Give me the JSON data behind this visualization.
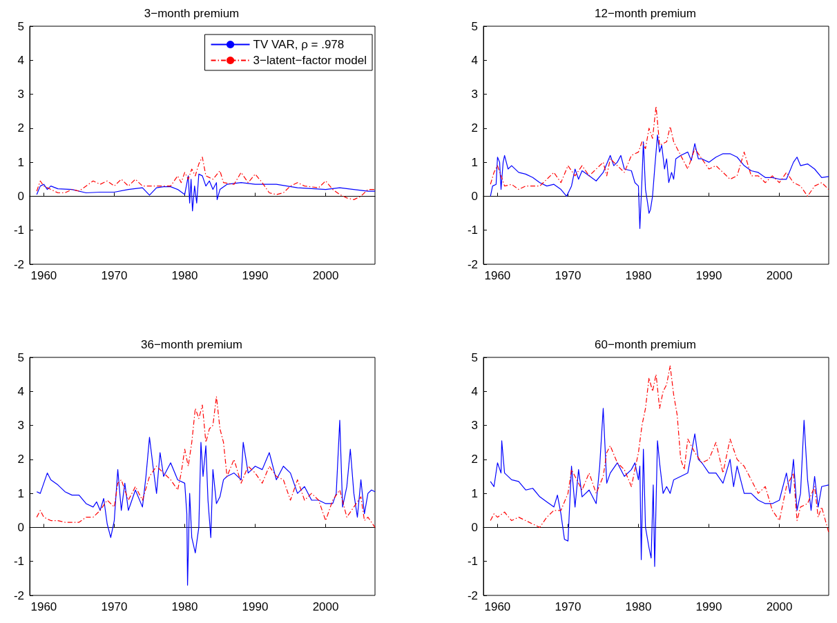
{
  "chart_data": [
    {
      "type": "line",
      "title": "3−month premium",
      "xlim": [
        1958,
        2007
      ],
      "xticks": [
        1960,
        1970,
        1980,
        1990,
        2000
      ],
      "ylim": [
        -2,
        5
      ],
      "yticks": [
        -2,
        -1,
        0,
        1,
        2,
        3,
        4,
        5
      ],
      "legend": "top right",
      "series": [
        {
          "name": "TV VAR, ρ = .978",
          "color": "#0000ff",
          "line_style": "solid",
          "x": [
            1959,
            1959.5,
            1960,
            1960.5,
            1961,
            1962,
            1964,
            1966,
            1968,
            1970,
            1972,
            1974,
            1975,
            1976,
            1977,
            1978,
            1979,
            1980,
            1980.5,
            1980.7,
            1980.9,
            1981.1,
            1981.4,
            1981.7,
            1982,
            1982.5,
            1983,
            1983.5,
            1984,
            1984.5,
            1984.6,
            1985,
            1986,
            1988,
            1990,
            1993,
            1996,
            2000,
            2002,
            2006,
            2007
          ],
          "values": [
            0.05,
            0.3,
            0.35,
            0.2,
            0.3,
            0.22,
            0.2,
            0.1,
            0.12,
            0.12,
            0.2,
            0.25,
            0.03,
            0.25,
            0.28,
            0.28,
            0.2,
            0.05,
            0.6,
            -0.2,
            0.5,
            -0.43,
            0.3,
            -0.2,
            0.65,
            0.6,
            0.3,
            0.45,
            0.2,
            0.4,
            -0.1,
            0.2,
            0.35,
            0.4,
            0.35,
            0.35,
            0.25,
            0.2,
            0.25,
            0.15,
            0.15
          ]
        },
        {
          "name": "3−latent−factor model",
          "color": "#ff0000",
          "line_style": "dashed",
          "x": [
            1959,
            1959.5,
            1960,
            1961,
            1962,
            1963,
            1964,
            1965,
            1966,
            1967,
            1968,
            1969,
            1970,
            1971,
            1972,
            1973,
            1974,
            1975,
            1976,
            1978,
            1979,
            1979.5,
            1980,
            1980.5,
            1981,
            1981.5,
            1982,
            1982.5,
            1983,
            1984,
            1985,
            1985.5,
            1987,
            1988,
            1989,
            1990,
            1991,
            1992,
            1993,
            1994,
            1995,
            1996,
            1997,
            1999,
            2000,
            2001,
            2002,
            2003,
            2004,
            2005,
            2006,
            2007
          ],
          "values": [
            0.15,
            0.45,
            0.3,
            0.2,
            0.1,
            0.1,
            0.2,
            0.15,
            0.3,
            0.45,
            0.35,
            0.45,
            0.3,
            0.5,
            0.3,
            0.5,
            0.3,
            0.3,
            0.3,
            0.3,
            0.6,
            0.4,
            0.7,
            0.5,
            0.8,
            0.6,
            0.95,
            1.15,
            0.6,
            0.5,
            0.75,
            0.4,
            0.35,
            0.7,
            0.4,
            0.65,
            0.4,
            0.1,
            0.05,
            0.1,
            0.3,
            0.4,
            0.3,
            0.25,
            0.45,
            0.2,
            0.05,
            -0.05,
            -0.1,
            0,
            0.2,
            0.2
          ]
        }
      ]
    },
    {
      "type": "line",
      "title": "12−month premium",
      "xlim": [
        1958,
        2007
      ],
      "xticks": [
        1960,
        1970,
        1980,
        1990,
        2000
      ],
      "ylim": [
        -2,
        5
      ],
      "yticks": [
        -2,
        -1,
        0,
        1,
        2,
        3,
        4,
        5
      ],
      "series": [
        {
          "color": "#0000ff",
          "line_style": "solid",
          "x": [
            1959,
            1959.3,
            1959.8,
            1960,
            1960.3,
            1960.5,
            1960.8,
            1961,
            1961.5,
            1962,
            1963,
            1964,
            1965,
            1966,
            1967,
            1968,
            1969,
            1969.8,
            1970.5,
            1971,
            1971.5,
            1972,
            1973,
            1974,
            1975,
            1976,
            1976.5,
            1977,
            1977.5,
            1978,
            1979,
            1979.5,
            1980,
            1980.2,
            1980.5,
            1980.7,
            1981,
            1981.3,
            1981.5,
            1981.7,
            1982,
            1982.3,
            1982.7,
            1983,
            1983.3,
            1983.7,
            1984,
            1984.3,
            1984.7,
            1985,
            1985.3,
            1986,
            1987,
            1987.5,
            1988,
            1988.5,
            1989,
            1990,
            1991,
            1992,
            1993,
            1994,
            1995,
            1996,
            1997,
            1998,
            1999,
            2000,
            2001,
            2002,
            2002.5,
            2003,
            2004,
            2005,
            2006,
            2007
          ],
          "values": [
            0,
            0.3,
            0.35,
            1.15,
            1,
            0.2,
            1,
            1.2,
            0.8,
            0.9,
            0.7,
            0.65,
            0.55,
            0.4,
            0.3,
            0.35,
            0.2,
            0,
            0.3,
            0.8,
            0.5,
            0.75,
            0.6,
            0.45,
            0.7,
            1.2,
            0.9,
            1,
            1.2,
            0.8,
            0.75,
            0.4,
            0.3,
            -0.95,
            0.5,
            1.6,
            0.2,
            -0.2,
            -0.5,
            -0.4,
            0,
            0.8,
            1.8,
            1.3,
            1.5,
            0.8,
            1.1,
            0.4,
            0.7,
            0.5,
            1.1,
            1.2,
            1.3,
            1.05,
            1.55,
            1.1,
            1.1,
            1,
            1.15,
            1.25,
            1.25,
            1.15,
            0.9,
            0.75,
            0.7,
            0.55,
            0.55,
            0.5,
            0.5,
            1,
            1.15,
            0.9,
            0.95,
            0.8,
            0.55,
            0.58
          ]
        },
        {
          "color": "#ff0000",
          "line_style": "dashed",
          "x": [
            1959,
            1959.5,
            1960,
            1960.5,
            1961,
            1962,
            1963,
            1964,
            1965,
            1966,
            1967,
            1968,
            1969,
            1970,
            1971,
            1972,
            1973,
            1974,
            1975,
            1975.5,
            1976,
            1977,
            1978,
            1979,
            1980,
            1980.5,
            1981,
            1981.5,
            1982,
            1982.5,
            1983,
            1984,
            1984.5,
            1985,
            1986,
            1987,
            1988,
            1989,
            1990,
            1991,
            1992,
            1993,
            1994,
            1995,
            1996,
            1997,
            1998,
            1999,
            2000,
            2001,
            2002,
            2003,
            2004,
            2005,
            2006,
            2007
          ],
          "values": [
            0.35,
            0.7,
            0.9,
            0.6,
            0.3,
            0.35,
            0.2,
            0.3,
            0.3,
            0.3,
            0.5,
            0.7,
            0.4,
            0.9,
            0.6,
            0.9,
            0.6,
            0.8,
            1,
            0.6,
            1.1,
            0.9,
            0.7,
            1.2,
            1.3,
            1.6,
            1.4,
            2,
            1.7,
            2.65,
            1.5,
            1.6,
            2.05,
            1.6,
            1.2,
            0.8,
            1.4,
            1.1,
            0.8,
            0.9,
            0.7,
            0.5,
            0.6,
            1.3,
            0.6,
            0.6,
            0.4,
            0.6,
            0.4,
            0.7,
            0.4,
            0.3,
            0,
            0.3,
            0.4,
            0.2
          ]
        }
      ]
    },
    {
      "type": "line",
      "title": "36−month premium",
      "xlim": [
        1958,
        2007
      ],
      "xticks": [
        1960,
        1970,
        1980,
        1990,
        2000
      ],
      "ylim": [
        -2,
        5
      ],
      "yticks": [
        -2,
        -1,
        0,
        1,
        2,
        3,
        4,
        5
      ],
      "series": [
        {
          "color": "#0000ff",
          "line_style": "solid",
          "x": [
            1959,
            1959.5,
            1960,
            1960.5,
            1961,
            1962,
            1963,
            1964,
            1965,
            1966,
            1967,
            1967.5,
            1968,
            1968.5,
            1969,
            1969.5,
            1970,
            1970.5,
            1971,
            1971.5,
            1972,
            1973,
            1974,
            1974.5,
            1975,
            1975.5,
            1976,
            1976.5,
            1977,
            1978,
            1979,
            1980,
            1980.3,
            1980.4,
            1980.7,
            1981,
            1981.5,
            1982,
            1982.3,
            1982.6,
            1983,
            1983.3,
            1983.7,
            1984,
            1984.5,
            1985,
            1985.5,
            1986,
            1987,
            1988,
            1988.3,
            1989,
            1990,
            1991,
            1992,
            1993,
            1994,
            1995,
            1996,
            1997,
            1998,
            1999,
            2000,
            2001,
            2001.5,
            2002,
            2002.4,
            2003,
            2003.5,
            2004,
            2004.5,
            2005,
            2005.5,
            2006,
            2006.5,
            2007
          ],
          "values": [
            1.05,
            1,
            1.3,
            1.6,
            1.4,
            1.25,
            1.05,
            0.95,
            0.95,
            0.7,
            0.6,
            0.75,
            0.5,
            0.85,
            0.1,
            -0.3,
            0.2,
            1.7,
            0.5,
            1.3,
            0.5,
            1.1,
            0.6,
            1.5,
            2.65,
            1.8,
            1,
            2.2,
            1.5,
            1.9,
            1.4,
            1.3,
            0.4,
            -1.7,
            1,
            -0.3,
            -0.75,
            0,
            2.5,
            1.5,
            2.4,
            0.8,
            -0.3,
            1.7,
            0.7,
            0.9,
            1.4,
            1.5,
            1.6,
            1.4,
            2.5,
            1.6,
            1.8,
            1.7,
            2.2,
            1.4,
            1.8,
            1.6,
            1,
            1.2,
            0.8,
            0.8,
            0.7,
            0.7,
            1,
            3.15,
            0.6,
            1.2,
            2.3,
            1,
            0.3,
            1.4,
            0.4,
            1,
            1.1,
            1.05
          ]
        },
        {
          "color": "#ff0000",
          "line_style": "dashed",
          "x": [
            1959,
            1959.5,
            1960,
            1961,
            1962,
            1963,
            1964,
            1965,
            1966,
            1967,
            1968,
            1969,
            1970,
            1970.5,
            1971,
            1972,
            1973,
            1974,
            1975,
            1976,
            1977,
            1978,
            1979,
            1979.5,
            1980,
            1980.5,
            1981,
            1981.5,
            1982,
            1982.5,
            1983,
            1983.5,
            1984,
            1984.5,
            1985,
            1985.5,
            1986,
            1987,
            1988,
            1989,
            1990,
            1991,
            1992,
            1993,
            1994,
            1995,
            1996,
            1997,
            1998,
            1999,
            2000,
            2001,
            2002,
            2003,
            2004,
            2005,
            2005.5,
            2006,
            2007
          ],
          "values": [
            0.3,
            0.5,
            0.3,
            0.2,
            0.2,
            0.15,
            0.15,
            0.15,
            0.3,
            0.3,
            0.5,
            0.8,
            0.6,
            1.3,
            1.4,
            0.8,
            1.2,
            0.8,
            1.5,
            1.8,
            1.6,
            1.4,
            1.1,
            1.6,
            2.3,
            1.8,
            2.5,
            3.5,
            3.2,
            3.6,
            2.5,
            2.9,
            3,
            3.85,
            2.9,
            2.5,
            1.5,
            2,
            1.3,
            1.8,
            1.6,
            1.3,
            1.8,
            1.5,
            1.4,
            0.8,
            1.4,
            0.8,
            1,
            0.8,
            0.2,
            0.8,
            1.1,
            0.3,
            0.6,
            0.9,
            0.2,
            0.3,
            0
          ]
        }
      ]
    },
    {
      "type": "line",
      "title": "60−month premium",
      "xlim": [
        1958,
        2007
      ],
      "xticks": [
        1960,
        1970,
        1980,
        1990,
        2000
      ],
      "ylim": [
        -2,
        5
      ],
      "yticks": [
        -2,
        -1,
        0,
        1,
        2,
        3,
        4,
        5
      ],
      "series": [
        {
          "color": "#0000ff",
          "line_style": "solid",
          "x": [
            1959,
            1959.5,
            1960,
            1960.5,
            1960.6,
            1961,
            1962,
            1963,
            1964,
            1965,
            1966,
            1967,
            1968,
            1968.5,
            1969,
            1969.5,
            1970,
            1970.5,
            1971,
            1971.5,
            1972,
            1973,
            1974,
            1974.5,
            1975,
            1975.5,
            1976,
            1977,
            1978,
            1979,
            1979.5,
            1980,
            1980.2,
            1980.4,
            1980.7,
            1981,
            1981.5,
            1981.8,
            1982.1,
            1982.3,
            1982.7,
            1983,
            1983.5,
            1984,
            1984.5,
            1985,
            1986,
            1987,
            1988,
            1988.5,
            1989,
            1990,
            1991,
            1992,
            1993,
            1993.5,
            1994,
            1995,
            1996,
            1997,
            1998,
            1999,
            2000,
            2001,
            2001.5,
            2002,
            2002.5,
            2003,
            2003.5,
            2004,
            2004.5,
            2005,
            2005.5,
            2006,
            2007
          ],
          "values": [
            1.35,
            1.2,
            1.9,
            1.6,
            2.55,
            1.6,
            1.4,
            1.35,
            1.1,
            1.15,
            0.9,
            0.75,
            0.6,
            0.95,
            0.4,
            -0.35,
            -0.4,
            1.8,
            0.6,
            1.7,
            0.9,
            1.1,
            0.7,
            1.8,
            3.5,
            1.3,
            1.6,
            1.9,
            1.5,
            1.7,
            1.9,
            1.4,
            1.8,
            -0.95,
            2.3,
            0,
            -0.6,
            -0.9,
            1.25,
            -1.15,
            2.55,
            1.9,
            1,
            1.2,
            1,
            1.4,
            1.5,
            1.6,
            2.75,
            2,
            1.9,
            1.6,
            1.6,
            1.3,
            2,
            1.2,
            1.8,
            1,
            1,
            0.8,
            0.7,
            0.7,
            0.8,
            1.6,
            1,
            2,
            0.5,
            1,
            3.15,
            1.4,
            0.5,
            1.5,
            0.6,
            1.2,
            1.25
          ]
        },
        {
          "color": "#ff0000",
          "line_style": "dashed",
          "x": [
            1959,
            1959.5,
            1960,
            1961,
            1962,
            1963,
            1964,
            1965,
            1966,
            1967,
            1968,
            1969,
            1970,
            1970.5,
            1971,
            1972,
            1973,
            1974,
            1975,
            1975.5,
            1976,
            1977,
            1978,
            1979,
            1980,
            1980.5,
            1981,
            1981.5,
            1982,
            1982.5,
            1983,
            1983.5,
            1984,
            1984.5,
            1985,
            1985.5,
            1986,
            1986.5,
            1987,
            1988,
            1989,
            1990,
            1991,
            1992,
            1993,
            1994,
            1995,
            1996,
            1997,
            1998,
            1999,
            2000,
            2001,
            2002,
            2002.5,
            2003,
            2004,
            2005,
            2005.5,
            2006,
            2007
          ],
          "values": [
            0.2,
            0.4,
            0.3,
            0.45,
            0.2,
            0.3,
            0.2,
            0.1,
            0,
            0.3,
            0.5,
            0.5,
            1,
            1.7,
            1.5,
            1.1,
            1.6,
            1,
            1.5,
            2.2,
            2.4,
            1.9,
            1.7,
            1.2,
            2.2,
            3,
            3.5,
            4.4,
            4,
            4.5,
            3.5,
            4,
            4.2,
            4.75,
            3.9,
            3.3,
            2,
            1.7,
            2.6,
            2.2,
            1.9,
            2,
            2.5,
            1.6,
            2.6,
            2,
            1.8,
            1.4,
            1,
            1.2,
            0.5,
            0.2,
            1.2,
            1.6,
            0.2,
            0.6,
            0.7,
            1.2,
            0.3,
            0.6,
            -0.15
          ]
        }
      ]
    }
  ]
}
